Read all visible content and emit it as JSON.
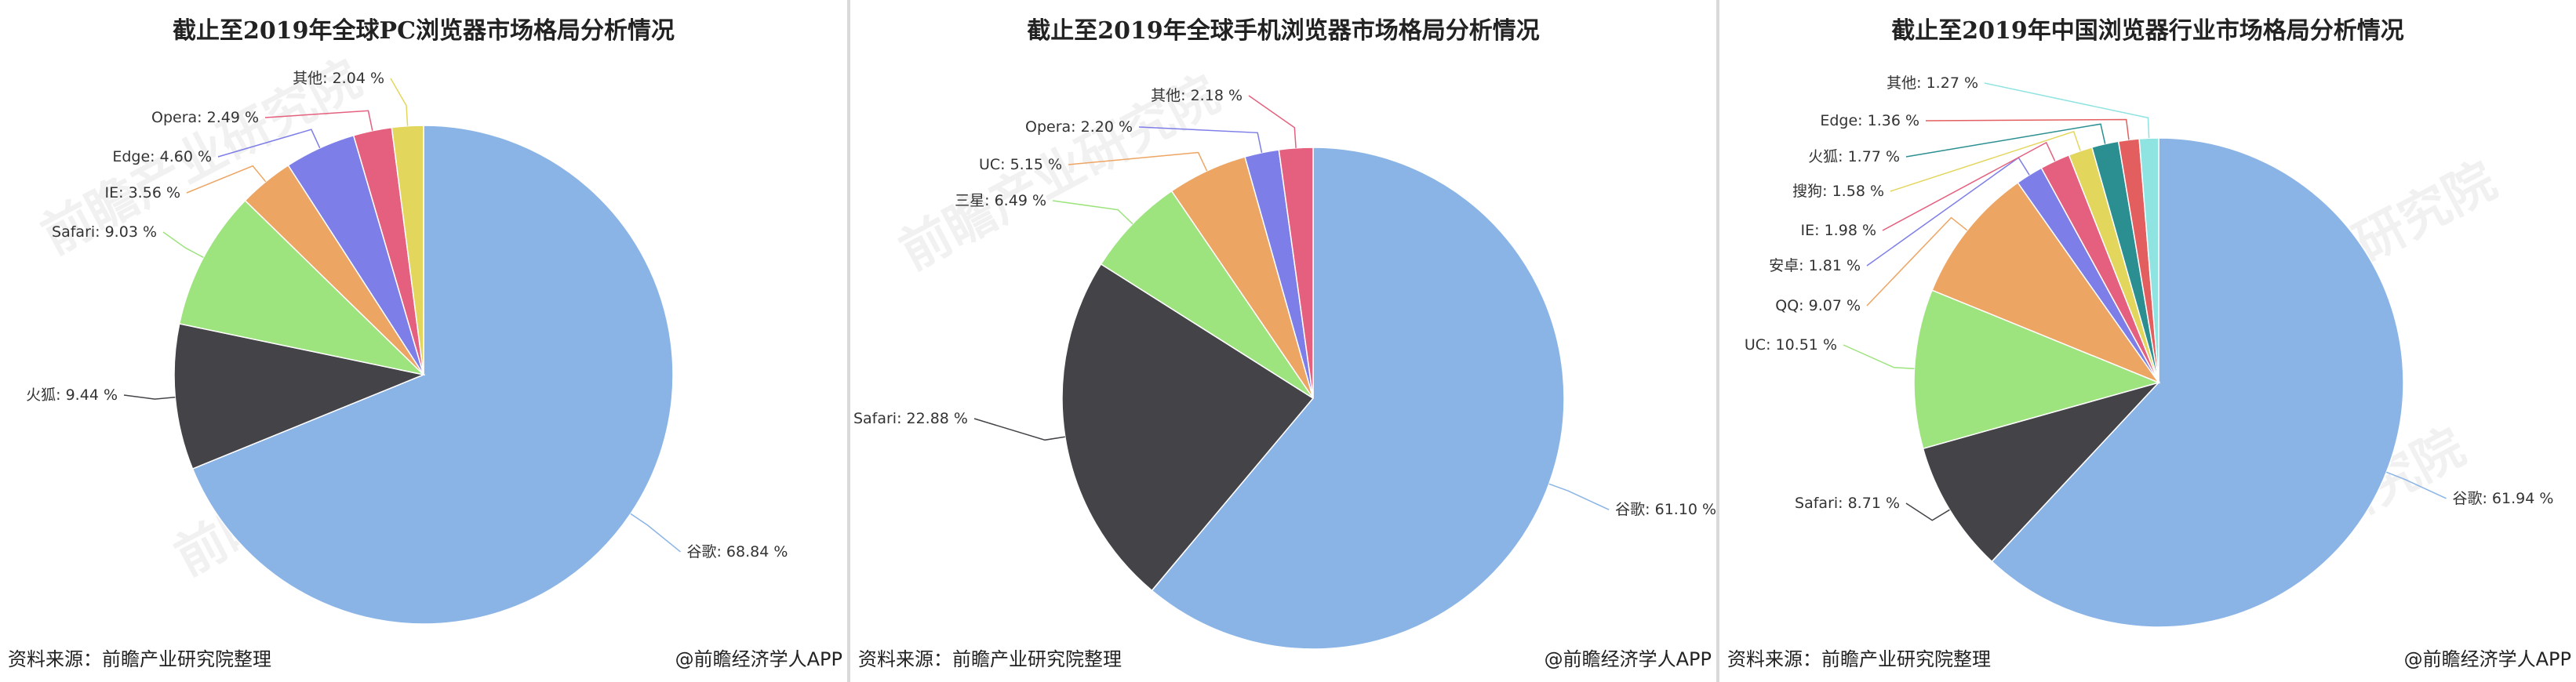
{
  "watermark": "前瞻产业研究院",
  "source": "资料来源：前瞻产业研究院整理",
  "credit": "@前瞻经济学人APP",
  "chart_data": [
    {
      "type": "pie",
      "title": "截止至2019年全球PC浏览器市场格局分析情况",
      "categories": [
        "谷歌",
        "火狐",
        "Safari",
        "IE",
        "Edge",
        "Opera",
        "其他"
      ],
      "values": [
        68.84,
        9.44,
        9.03,
        3.56,
        4.6,
        2.49,
        2.04
      ],
      "labels": [
        "谷歌: 68.84 %",
        "火狐: 9.44 %",
        "Safari: 9.03 %",
        "IE: 3.56 %",
        "Edge: 4.60 %",
        "Opera: 2.49 %",
        "其他: 2.04 %"
      ],
      "colors": [
        "#8ab4e6",
        "#434348",
        "#9de37e",
        "#eda563",
        "#7e7ee8",
        "#e4607e",
        "#e3d65d"
      ]
    },
    {
      "type": "pie",
      "title": "截止至2019年全球手机浏览器市场格局分析情况",
      "categories": [
        "谷歌",
        "Safari",
        "三星",
        "UC",
        "Opera",
        "其他"
      ],
      "values": [
        61.1,
        22.88,
        6.49,
        5.15,
        2.2,
        2.18
      ],
      "labels": [
        "谷歌: 61.10 %",
        "Safari: 22.88 %",
        "三星: 6.49 %",
        "UC: 5.15 %",
        "Opera: 2.20 %",
        "其他: 2.18 %"
      ],
      "colors": [
        "#8ab4e6",
        "#434348",
        "#9de37e",
        "#eda563",
        "#7e7ee8",
        "#e4607e"
      ]
    },
    {
      "type": "pie",
      "title": "截止至2019年中国浏览器行业市场格局分析情况",
      "categories": [
        "谷歌",
        "Safari",
        "UC",
        "QQ",
        "安卓",
        "IE",
        "搜狗",
        "火狐",
        "Edge",
        "其他"
      ],
      "values": [
        61.94,
        8.71,
        10.51,
        9.07,
        1.81,
        1.98,
        1.58,
        1.77,
        1.36,
        1.27
      ],
      "labels": [
        "谷歌: 61.94 %",
        "Safari: 8.71 %",
        "UC: 10.51 %",
        "QQ: 9.07 %",
        "安卓: 1.81 %",
        "IE: 1.98 %",
        "搜狗: 1.58 %",
        "火狐: 1.77 %",
        "Edge: 1.36 %",
        "其他: 1.27 %"
      ],
      "colors": [
        "#8ab4e6",
        "#434348",
        "#9de37e",
        "#eda563",
        "#7e7ee8",
        "#e4607e",
        "#e3d65d",
        "#2b8f91",
        "#e35f5f",
        "#8fe3e0"
      ]
    }
  ]
}
